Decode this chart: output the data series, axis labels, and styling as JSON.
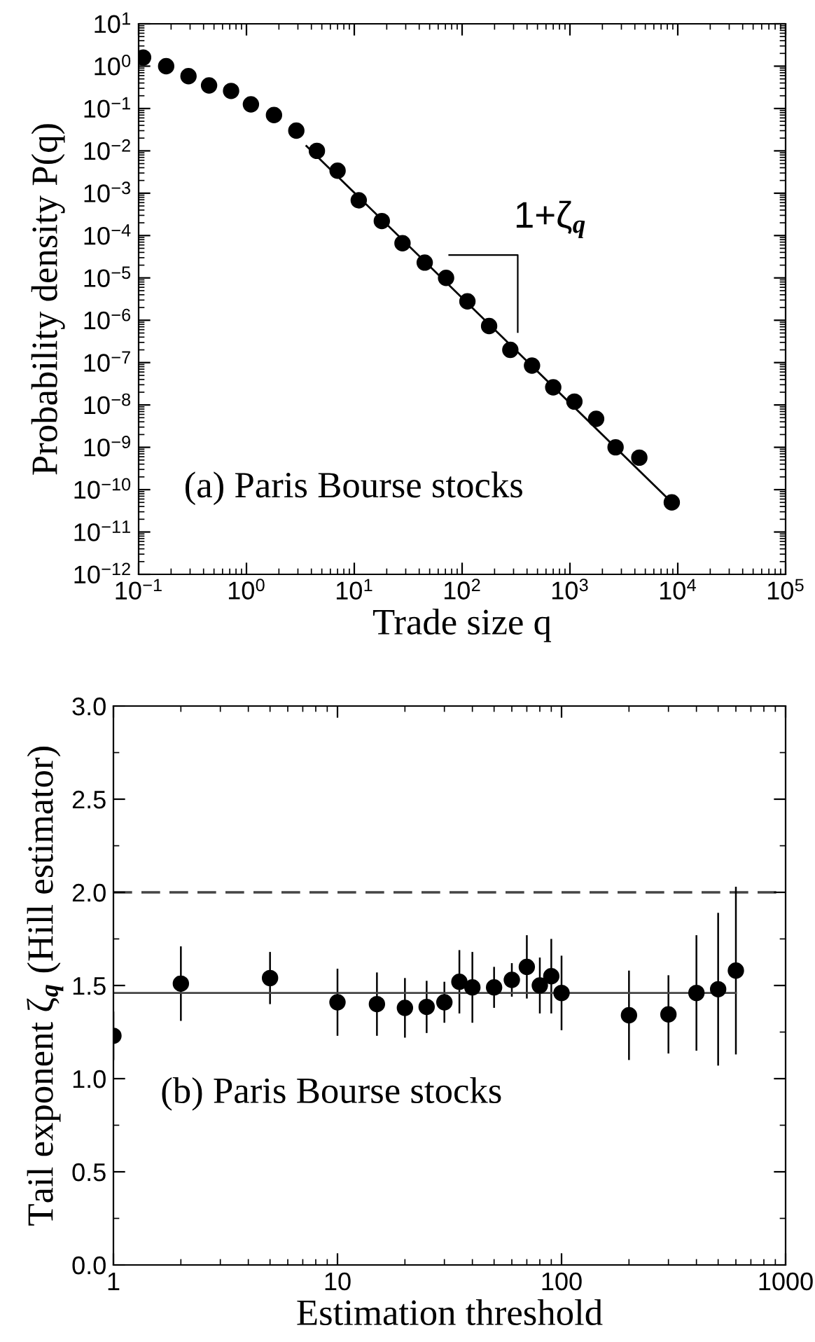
{
  "chart_data": [
    {
      "type": "scatter",
      "xlabel": "Trade size q",
      "ylabel": "Probability density P(q)",
      "log": "xy",
      "grid": false,
      "marker": "circle",
      "xlim": [
        0.1,
        100000
      ],
      "ylim": [
        1e-12,
        10
      ],
      "xticks": [
        {
          "value": 0.1,
          "label": "10$^{−1}$"
        },
        {
          "value": 1,
          "label": "10$^{0}$"
        },
        {
          "value": 10,
          "label": "10$^{1}$"
        },
        {
          "value": 100,
          "label": "10$^{2}$"
        },
        {
          "value": 1000,
          "label": "10$^{3}$"
        },
        {
          "value": 10000,
          "label": "10$^{4}$"
        },
        {
          "value": 100000,
          "label": "10$^{5}$"
        }
      ],
      "yticks": [
        {
          "value": 1e-12,
          "label": "10$^{−12}$"
        },
        {
          "value": 1e-11,
          "label": "10$^{−11}$"
        },
        {
          "value": 1e-10,
          "label": "10$^{−10}$"
        },
        {
          "value": 1e-09,
          "label": "10$^{−9}$"
        },
        {
          "value": 1e-08,
          "label": "10$^{−8}$"
        },
        {
          "value": 1e-07,
          "label": "10$^{−7}$"
        },
        {
          "value": 1e-06,
          "label": "10$^{−6}$"
        },
        {
          "value": 1e-05,
          "label": "10$^{−5}$"
        },
        {
          "value": 0.0001,
          "label": "10$^{−4}$"
        },
        {
          "value": 0.001,
          "label": "10$^{−3}$"
        },
        {
          "value": 0.01,
          "label": "10$^{−2}$"
        },
        {
          "value": 0.1,
          "label": "10$^{−1}$"
        },
        {
          "value": 1,
          "label": "10$^{0}$"
        },
        {
          "value": 10,
          "label": "10$^{1}$"
        }
      ],
      "series": [
        {
          "color": "#000000",
          "x": [
            0.11,
            0.18,
            0.29,
            0.45,
            0.72,
            1.1,
            1.8,
            2.9,
            4.5,
            7.0,
            11,
            18,
            28,
            45,
            71,
            112,
            178,
            280,
            445,
            700,
            1100,
            1750,
            2650,
            4400,
            8800
          ],
          "values": [
            1.6,
            1.0,
            0.58,
            0.35,
            0.26,
            0.125,
            0.07,
            0.03,
            0.01,
            0.0034,
            0.00068,
            0.00022,
            6.6e-05,
            2.3e-05,
            1e-05,
            2.8e-06,
            7.3e-07,
            2e-07,
            8.5e-08,
            2.6e-08,
            1.2e-08,
            4.7e-09,
            1e-09,
            5.7e-10,
            5e-11
          ]
        },
        {
          "type": "line",
          "color": "#000000",
          "marker": "none",
          "x": [
            3.6,
            8800
          ],
          "values": [
            0.013,
            5e-11
          ]
        }
      ],
      "annotations": [
        "(a) Paris Bourse stocks",
        "1+ζ$_{q}$"
      ]
    },
    {
      "type": "scatter",
      "xlabel": "Estimation threshold",
      "ylabel": "Tail exponent ζ$_{q}$ (Hill estimator)",
      "log": "x",
      "grid": false,
      "marker": "circle",
      "xlim": [
        1,
        1000
      ],
      "ylim": [
        0,
        3
      ],
      "xticks": [
        1,
        10,
        100,
        1000
      ],
      "yticks": [
        {
          "value": 0,
          "label": "0.0"
        },
        {
          "value": 0.5,
          "label": "0.5"
        },
        {
          "value": 1,
          "label": "1.0"
        },
        {
          "value": 1.5,
          "label": "1.5"
        },
        {
          "value": 2,
          "label": "2.0"
        },
        {
          "value": 2.5,
          "label": "2.5"
        },
        {
          "value": 3,
          "label": "3.0"
        }
      ],
      "series": [
        {
          "color": "#000000",
          "x": [
            1,
            2,
            5,
            10,
            15,
            20,
            25,
            30,
            35,
            40,
            50,
            60,
            70,
            80,
            90,
            100,
            200,
            300,
            400,
            500,
            600
          ],
          "values": [
            1.23,
            1.51,
            1.54,
            1.41,
            1.4,
            1.38,
            1.385,
            1.41,
            1.52,
            1.49,
            1.49,
            1.53,
            1.6,
            1.5,
            1.55,
            1.46,
            1.34,
            1.345,
            1.46,
            1.48,
            1.58
          ],
          "errors": [
            0.13,
            0.2,
            0.14,
            0.18,
            0.17,
            0.16,
            0.14,
            0.11,
            0.17,
            0.19,
            0.11,
            0.09,
            0.17,
            0.15,
            0.2,
            0.2,
            0.24,
            0.21,
            0.31,
            0.41,
            0.45
          ]
        },
        {
          "type": "line",
          "color": "#444444",
          "marker": "none",
          "x": [
            1,
            600
          ],
          "values": [
            1.46,
            1.46
          ]
        }
      ],
      "ref_lines": [
        {
          "axis": "y",
          "value": 2.0,
          "color": "#444444",
          "line_style": "dashed"
        }
      ],
      "annotations": [
        "(b) Paris Bourse stocks"
      ]
    }
  ]
}
